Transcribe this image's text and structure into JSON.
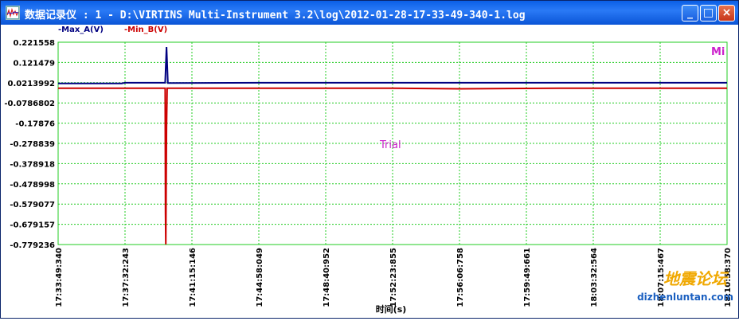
{
  "window": {
    "title": "数据记录仪 : 1 - D:\\VIRTINS Multi-Instrument 3.2\\log\\2012-01-28-17-33-49-340-1.log",
    "minimize_glyph": "_",
    "maximize_glyph": "□",
    "close_glyph": "×"
  },
  "icons": {
    "app": "oscilloscope-icon"
  },
  "colors": {
    "grid": "#22cc22",
    "series_a": "#000080",
    "series_b": "#cc0000",
    "trial": "#cc22cc",
    "watermark": "#f0a800"
  },
  "annotations": {
    "trial": "Trial",
    "corner": "Mi"
  },
  "watermark": {
    "cn": "地震论坛",
    "url": "dizhenluntan.com"
  },
  "chart_data": {
    "type": "line",
    "xlabel": "时间(s)",
    "ylabel": "",
    "y_ticks": [
      "0.221558",
      "0.121479",
      "0.0213992",
      "-0.0786802",
      "-0.17876",
      "-0.278839",
      "-0.378918",
      "-0.478998",
      "-0.579077",
      "-0.679157",
      "-0.779236"
    ],
    "ylim": [
      -0.779236,
      0.221558
    ],
    "x_ticks": [
      "17:33:49:340",
      "17:37:32:243",
      "17:41:15:146",
      "17:44:58:049",
      "17:48:40:952",
      "17:52:23:855",
      "17:56:06:758",
      "17:59:49:661",
      "18:03:32:564",
      "18:07:15:467",
      "18:10:58:370"
    ],
    "grid": true,
    "series": [
      {
        "name": "-Max_A(V)",
        "x_fraction": [
          0,
          0.095,
          0.1,
          0.16,
          0.162,
          0.164,
          0.3,
          0.5,
          0.75,
          1
        ],
        "values": [
          0.018,
          0.018,
          0.021,
          0.021,
          0.198,
          0.02,
          0.021,
          0.021,
          0.021,
          0.021
        ]
      },
      {
        "name": "-Min_B(V)",
        "x_fraction": [
          0,
          0.16,
          0.1605,
          0.161,
          0.162,
          0.163,
          0.3,
          0.5,
          0.6,
          0.75,
          1
        ],
        "values": [
          -0.006,
          -0.006,
          -0.62,
          -0.779,
          -0.2,
          -0.006,
          -0.006,
          -0.006,
          -0.009,
          -0.006,
          -0.006
        ]
      }
    ]
  }
}
